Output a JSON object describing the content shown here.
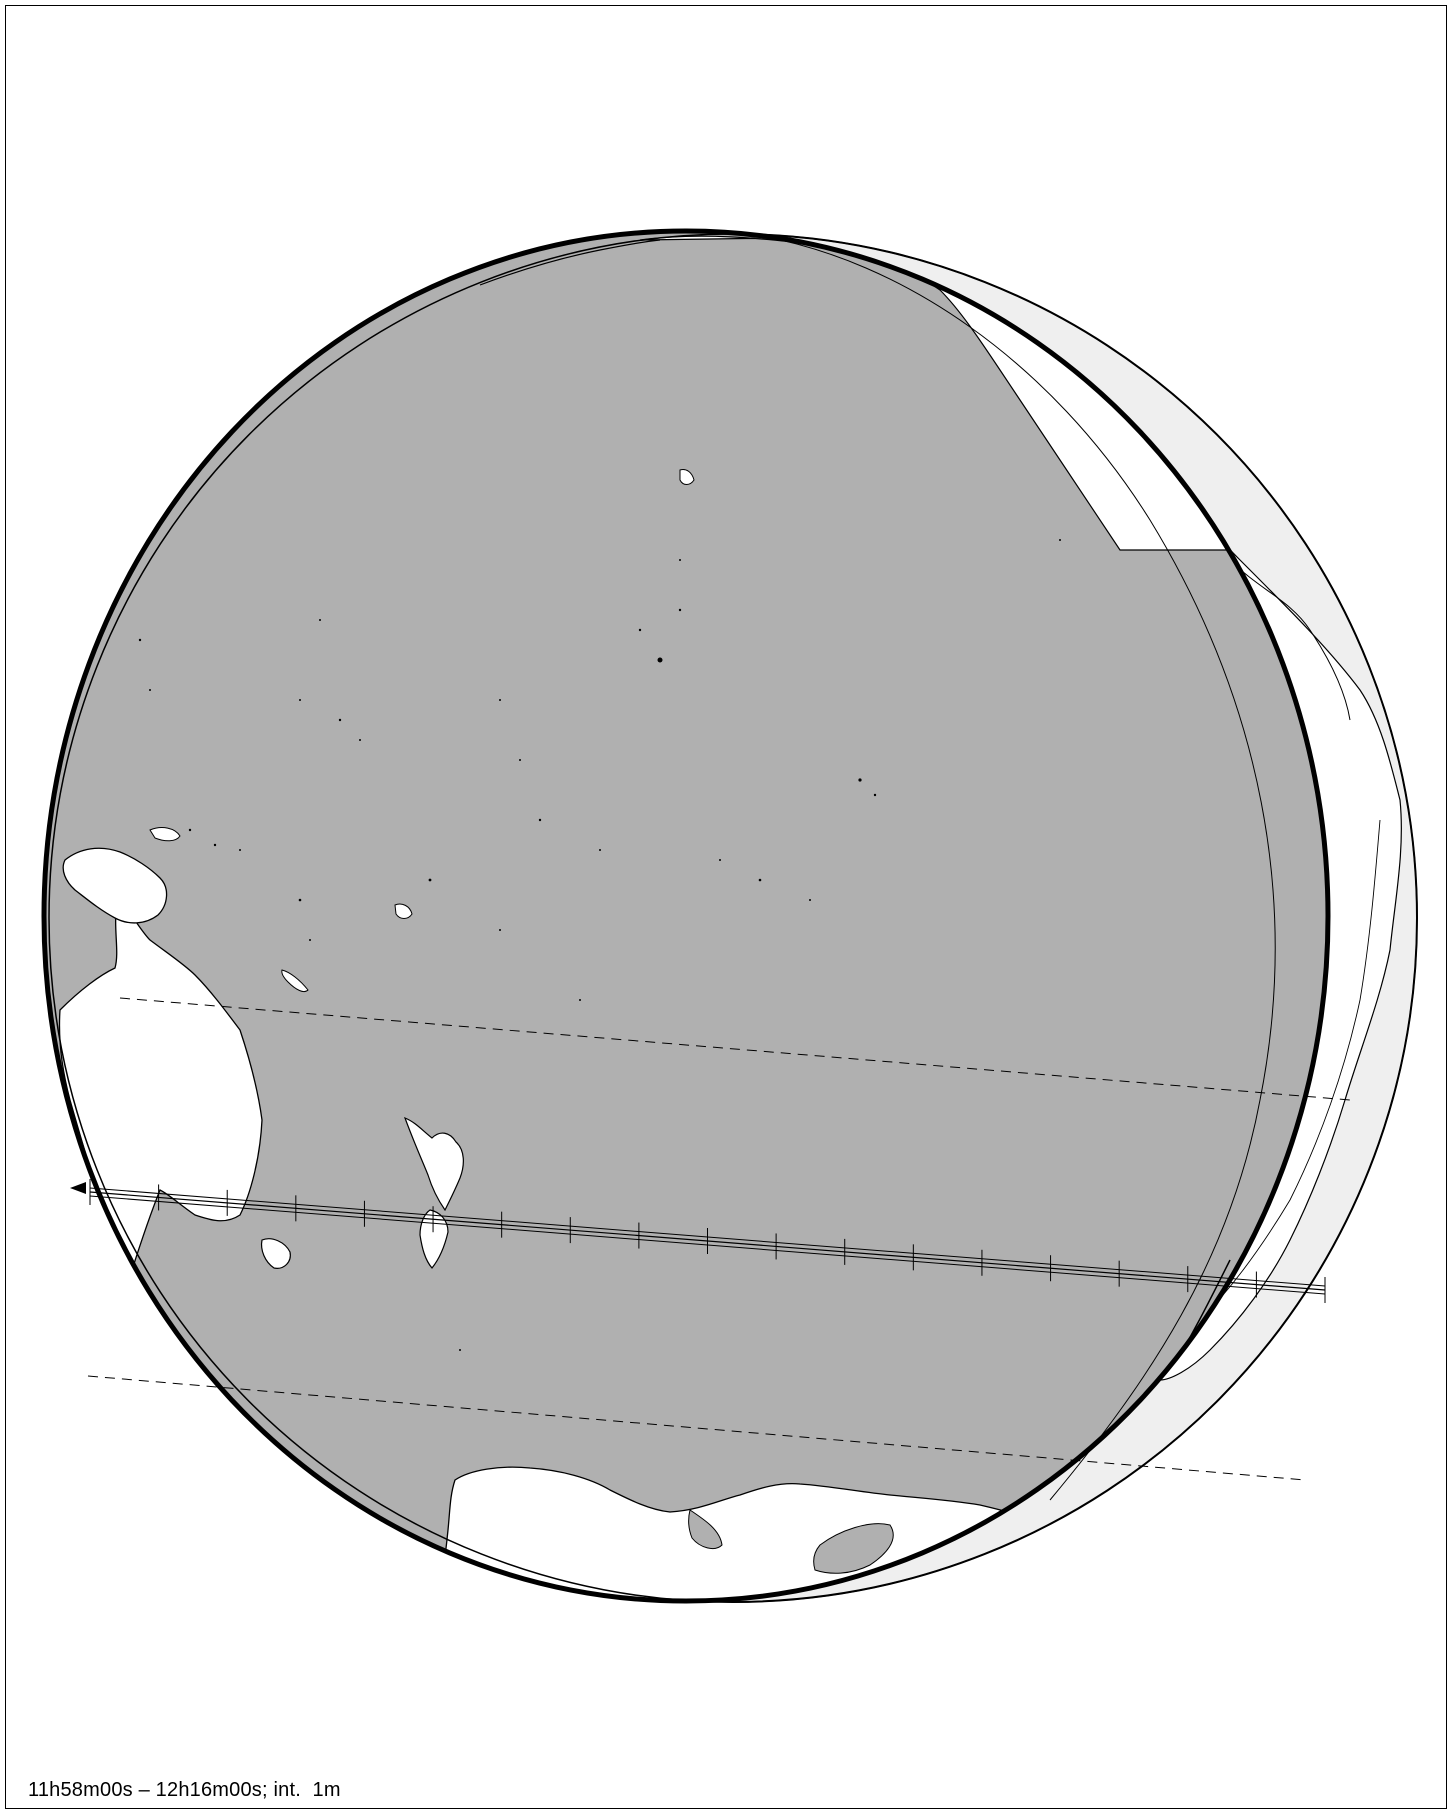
{
  "map": {
    "caption": "11h58m00s – 12h16m00s; int.  1m",
    "colors": {
      "background": "#ffffff",
      "shadow": "#b0b0b0",
      "sunlit_land": "#ffffff",
      "partial_zone": "#efefef",
      "line": "#000000"
    },
    "path_tick_count": 19,
    "path_direction": "westward"
  }
}
